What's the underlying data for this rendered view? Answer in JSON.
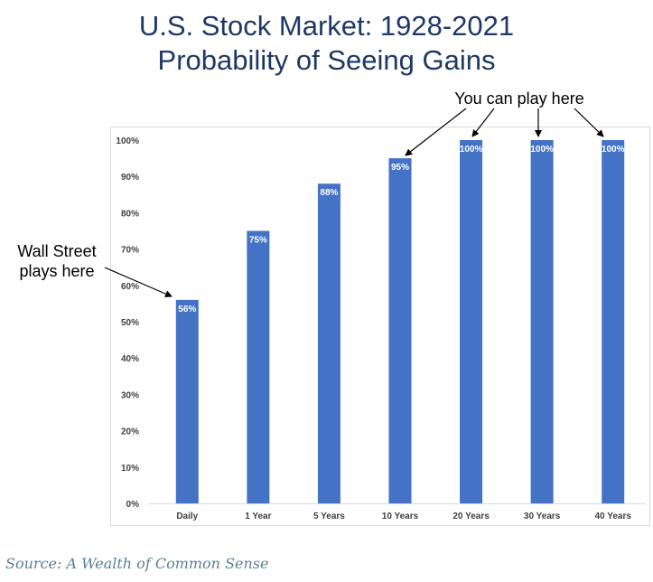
{
  "title": {
    "line1": "U.S. Stock Market: 1928-2021",
    "line2": "Probability of Seeing Gains"
  },
  "annotations": {
    "wall_street_line1": "Wall Street",
    "wall_street_line2": "plays here",
    "you_can_play": "You can play here"
  },
  "source": "Source: A Wealth of Common Sense",
  "colors": {
    "bar": "#4472c4",
    "title": "#1f3864",
    "source": "#5a7f93"
  },
  "chart_data": {
    "type": "bar",
    "categories": [
      "Daily",
      "1 Year",
      "5 Years",
      "10 Years",
      "20 Years",
      "30 Years",
      "40 Years"
    ],
    "values": [
      56,
      75,
      88,
      95,
      100,
      100,
      100
    ],
    "data_labels": [
      "56%",
      "75%",
      "88%",
      "95%",
      "100%",
      "100%",
      "100%"
    ],
    "title": "U.S. Stock Market: 1928-2021 Probability of Seeing Gains",
    "xlabel": "",
    "ylabel": "",
    "ylim": [
      0,
      100
    ],
    "yticks": [
      "0%",
      "10%",
      "20%",
      "30%",
      "40%",
      "50%",
      "60%",
      "70%",
      "80%",
      "90%",
      "100%"
    ],
    "grid": false,
    "legend": "none"
  }
}
